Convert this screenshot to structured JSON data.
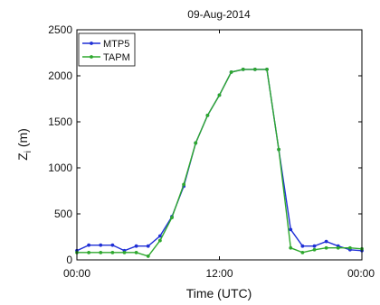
{
  "chart_data": {
    "type": "line",
    "title": "09-Aug-2014",
    "xlabel": "Time (UTC)",
    "ylabel_base": "Z",
    "ylabel_sub": "i",
    "ylabel_unit": " (m)",
    "xlim": [
      0,
      24
    ],
    "ylim": [
      0,
      2500
    ],
    "xticks": [
      {
        "value": 0,
        "label": "00:00"
      },
      {
        "value": 12,
        "label": "12:00"
      },
      {
        "value": 24,
        "label": "00:00"
      }
    ],
    "yticks": [
      {
        "value": 0,
        "label": "0"
      },
      {
        "value": 500,
        "label": "500"
      },
      {
        "value": 1000,
        "label": "1000"
      },
      {
        "value": 1500,
        "label": "1500"
      },
      {
        "value": 2000,
        "label": "2000"
      },
      {
        "value": 2500,
        "label": "2500"
      }
    ],
    "grid": false,
    "legend_position": "top-left",
    "series": [
      {
        "name": "MTP5",
        "color": "#1f2fd6",
        "x": [
          0,
          1,
          2,
          3,
          4,
          5,
          6,
          7,
          8,
          9,
          10,
          11,
          12,
          13,
          14,
          15,
          16,
          17,
          18,
          19,
          20,
          21,
          22,
          23,
          24
        ],
        "y": [
          100,
          160,
          160,
          160,
          100,
          150,
          150,
          260,
          470,
          800,
          1270,
          1570,
          1790,
          2040,
          2070,
          2070,
          2070,
          1200,
          330,
          150,
          150,
          200,
          150,
          110,
          100
        ]
      },
      {
        "name": "TAPM",
        "color": "#2ea82e",
        "x": [
          0,
          1,
          2,
          3,
          4,
          5,
          6,
          7,
          8,
          9,
          10,
          11,
          12,
          13,
          14,
          15,
          16,
          17,
          18,
          19,
          20,
          21,
          22,
          23,
          24
        ],
        "y": [
          80,
          80,
          80,
          80,
          80,
          80,
          40,
          210,
          460,
          820,
          1270,
          1570,
          1790,
          2040,
          2070,
          2070,
          2070,
          1200,
          130,
          80,
          110,
          130,
          130,
          130,
          120
        ]
      }
    ]
  }
}
